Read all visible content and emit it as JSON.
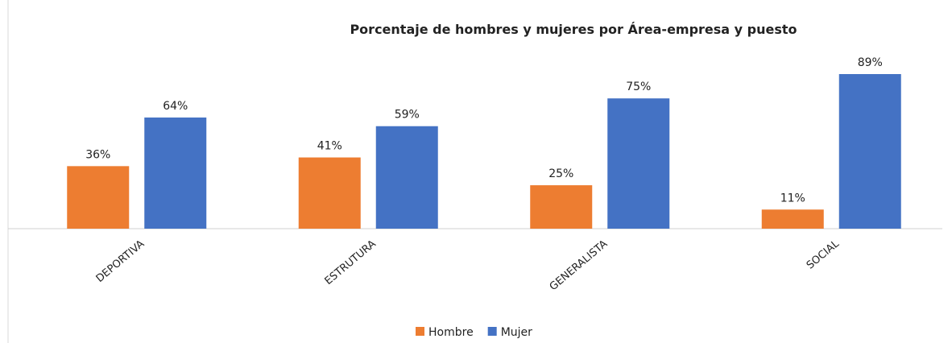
{
  "chart_data": {
    "type": "bar",
    "title": "Porcentaje de hombres y mujeres por Área-empresa y puesto",
    "categories": [
      "DEPORTIVA",
      "ESTRUTURA",
      "GENERALISTA",
      "SOCIAL"
    ],
    "series": [
      {
        "name": "Hombre",
        "color": "#ed7d31",
        "values": [
          36,
          41,
          25,
          11
        ],
        "value_labels": [
          "36%",
          "41%",
          "25%",
          "11%"
        ]
      },
      {
        "name": "Mujer",
        "color": "#4472c4",
        "values": [
          64,
          59,
          75,
          89
        ],
        "value_labels": [
          "64%",
          "59%",
          "75%",
          "89%"
        ]
      }
    ]
  }
}
